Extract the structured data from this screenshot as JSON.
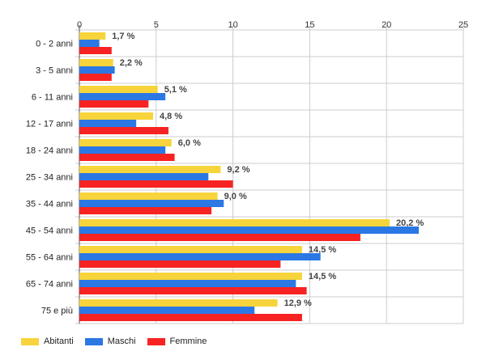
{
  "chart_data": {
    "type": "bar",
    "orientation": "horizontal",
    "categories": [
      "0 - 2 anni",
      "3 - 5 anni",
      "6 - 11 anni",
      "12 - 17 anni",
      "18 - 24 anni",
      "25 - 34 anni",
      "35 - 44 anni",
      "45 - 54 anni",
      "55 - 64 anni",
      "65 - 74 anni",
      "75 e più"
    ],
    "series": [
      {
        "name": "Abitanti",
        "color": "#f7d43b",
        "values": [
          1.7,
          2.2,
          5.1,
          4.8,
          6.0,
          9.2,
          9.0,
          20.2,
          14.5,
          14.5,
          12.9
        ],
        "data_labels": [
          "1,7 %",
          "2,2 %",
          "5,1 %",
          "4,8 %",
          "6,0 %",
          "9,2 %",
          "9,0 %",
          "20,2 %",
          "14,5 %",
          "14,5 %",
          "12,9 %"
        ]
      },
      {
        "name": "Maschi",
        "color": "#2b78e4",
        "values": [
          1.3,
          2.3,
          5.6,
          3.7,
          5.6,
          8.4,
          9.4,
          22.1,
          15.7,
          14.1,
          11.4
        ]
      },
      {
        "name": "Femmine",
        "color": "#f72323",
        "values": [
          2.1,
          2.1,
          4.5,
          5.8,
          6.2,
          10.0,
          8.6,
          18.3,
          13.1,
          14.8,
          14.5
        ]
      }
    ],
    "xlim": [
      0,
      25
    ],
    "x_ticks": [
      "0",
      "5",
      "10",
      "15",
      "20",
      "25"
    ],
    "x_axis_position": "top",
    "grid": true,
    "legend_position": "bottom-left"
  }
}
